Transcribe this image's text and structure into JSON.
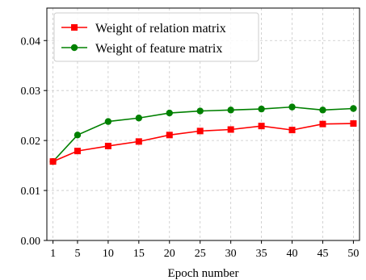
{
  "chart_data": {
    "type": "line",
    "title": "",
    "xlabel": "Epoch number",
    "ylabel": "",
    "x": [
      1,
      5,
      10,
      15,
      20,
      25,
      30,
      35,
      40,
      45,
      50
    ],
    "x_tick_labels": [
      "1",
      "5",
      "10",
      "15",
      "20",
      "25",
      "30",
      "35",
      "40",
      "45",
      "50"
    ],
    "y_ticks": [
      0.0,
      0.01,
      0.02,
      0.03,
      0.04
    ],
    "y_tick_labels": [
      "0.00",
      "0.01",
      "0.02",
      "0.03",
      "0.04"
    ],
    "xlim": [
      0,
      51
    ],
    "ylim": [
      0,
      0.0465
    ],
    "grid": true,
    "legend_position": "top-left",
    "series": [
      {
        "name": "Weight of relation matrix",
        "color": "#ff0000",
        "marker": "square",
        "values": [
          0.0158,
          0.0179,
          0.0189,
          0.0198,
          0.0211,
          0.0219,
          0.0222,
          0.0229,
          0.0221,
          0.0233,
          0.0234
        ]
      },
      {
        "name": "Weight of feature matrix",
        "color": "#008000",
        "marker": "circle",
        "values": [
          0.0158,
          0.0211,
          0.0238,
          0.0245,
          0.0255,
          0.0259,
          0.0261,
          0.0263,
          0.0267,
          0.0261,
          0.0264
        ]
      }
    ]
  }
}
